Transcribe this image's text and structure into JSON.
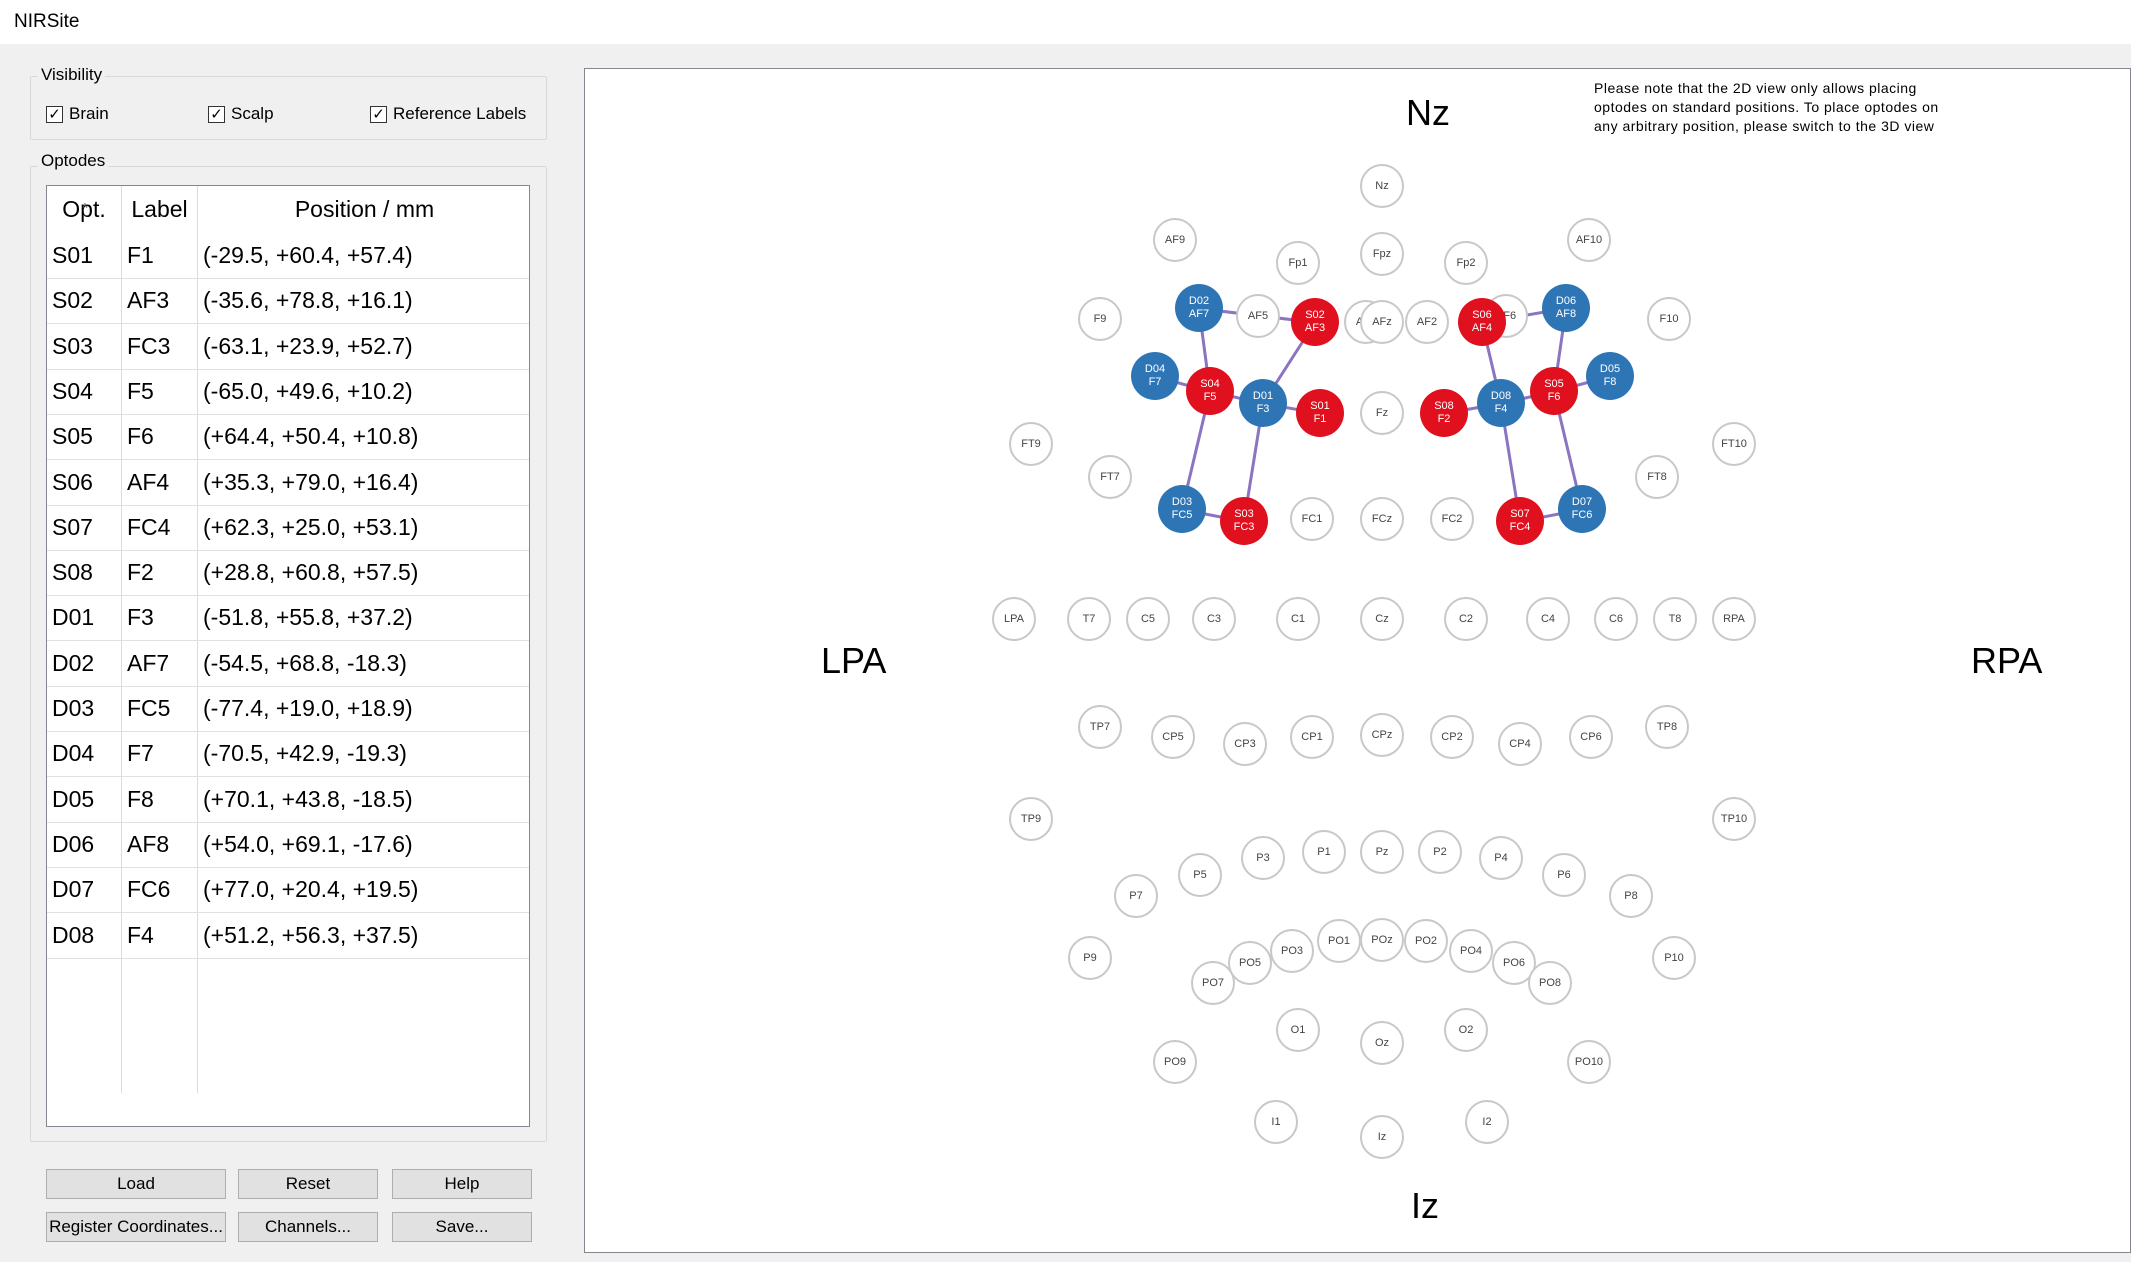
{
  "window": {
    "title": "NIRSite"
  },
  "visibility": {
    "title": "Visibility",
    "checkboxes": [
      {
        "label": "Brain",
        "checked": true
      },
      {
        "label": "Scalp",
        "checked": true
      },
      {
        "label": "Reference Labels",
        "checked": true
      }
    ]
  },
  "optodes": {
    "title": "Optodes",
    "columns": [
      "Opt.",
      "Label",
      "Position / mm"
    ],
    "rows": [
      {
        "opt": "S01",
        "label": "F1",
        "pos": "(-29.5, +60.4, +57.4)"
      },
      {
        "opt": "S02",
        "label": "AF3",
        "pos": "(-35.6, +78.8, +16.1)"
      },
      {
        "opt": "S03",
        "label": "FC3",
        "pos": "(-63.1, +23.9, +52.7)"
      },
      {
        "opt": "S04",
        "label": "F5",
        "pos": "(-65.0, +49.6, +10.2)"
      },
      {
        "opt": "S05",
        "label": "F6",
        "pos": "(+64.4, +50.4, +10.8)"
      },
      {
        "opt": "S06",
        "label": "AF4",
        "pos": "(+35.3, +79.0, +16.4)"
      },
      {
        "opt": "S07",
        "label": "FC4",
        "pos": "(+62.3, +25.0, +53.1)"
      },
      {
        "opt": "S08",
        "label": "F2",
        "pos": "(+28.8, +60.8, +57.5)"
      },
      {
        "opt": "D01",
        "label": "F3",
        "pos": "(-51.8, +55.8, +37.2)"
      },
      {
        "opt": "D02",
        "label": "AF7",
        "pos": "(-54.5, +68.8, -18.3)"
      },
      {
        "opt": "D03",
        "label": "FC5",
        "pos": "(-77.4, +19.0, +18.9)"
      },
      {
        "opt": "D04",
        "label": "F7",
        "pos": "(-70.5, +42.9, -19.3)"
      },
      {
        "opt": "D05",
        "label": "F8",
        "pos": "(+70.1, +43.8, -18.5)"
      },
      {
        "opt": "D06",
        "label": "AF8",
        "pos": "(+54.0, +69.1, -17.6)"
      },
      {
        "opt": "D07",
        "label": "FC6",
        "pos": "(+77.0, +20.4, +19.5)"
      },
      {
        "opt": "D08",
        "label": "F4",
        "pos": "(+51.2, +56.3, +37.5)"
      }
    ]
  },
  "buttons": {
    "load": "Load",
    "reset": "Reset",
    "help": "Help",
    "register": "Register Coordinates...",
    "channels": "Channels...",
    "save": "Save..."
  },
  "view2d": {
    "note": "Please note that the 2D view only allows placing optodes on standard positions. To place optodes on any arbitrary position, please switch to the 3D view",
    "landmarks": {
      "nz": "Nz",
      "iz": "Iz",
      "lpa": "LPA",
      "rpa": "RPA"
    },
    "source_color": "#e0101e",
    "detector_color": "#2e75b6",
    "electrodes": [
      "Nz",
      "Fp1",
      "Fpz",
      "Fp2",
      "AF9",
      "AF10",
      "AF7",
      "AF5",
      "AF1",
      "AFz",
      "AF2",
      "AF6",
      "AF8",
      "F9",
      "F10",
      "FT9",
      "FT10",
      "FT7",
      "FT8",
      "FC1",
      "FCz",
      "FC2",
      "Fz",
      "LPA",
      "T7",
      "C5",
      "C3",
      "C1",
      "Cz",
      "C2",
      "C4",
      "C6",
      "T8",
      "RPA",
      "TP7",
      "CP5",
      "CP3",
      "CP1",
      "CPz",
      "CP2",
      "CP4",
      "CP6",
      "TP8",
      "TP9",
      "TP10",
      "P7",
      "P5",
      "P3",
      "P1",
      "Pz",
      "P2",
      "P4",
      "P6",
      "P8",
      "P9",
      "P10",
      "PO7",
      "PO5",
      "PO3",
      "PO1",
      "POz",
      "PO2",
      "PO4",
      "PO6",
      "PO8",
      "O1",
      "Oz",
      "O2",
      "PO9",
      "PO10",
      "I1",
      "Iz",
      "I2"
    ],
    "optodes_placed": [
      {
        "id": "S01",
        "site": "F1",
        "type": "source"
      },
      {
        "id": "S02",
        "site": "AF3",
        "type": "source"
      },
      {
        "id": "S03",
        "site": "FC3",
        "type": "source"
      },
      {
        "id": "S04",
        "site": "F5",
        "type": "source"
      },
      {
        "id": "S05",
        "site": "F6",
        "type": "source"
      },
      {
        "id": "S06",
        "site": "AF4",
        "type": "source"
      },
      {
        "id": "S07",
        "site": "FC4",
        "type": "source"
      },
      {
        "id": "S08",
        "site": "F2",
        "type": "source"
      },
      {
        "id": "D01",
        "site": "F3",
        "type": "detector"
      },
      {
        "id": "D02",
        "site": "AF7",
        "type": "detector"
      },
      {
        "id": "D03",
        "site": "FC5",
        "type": "detector"
      },
      {
        "id": "D04",
        "site": "F7",
        "type": "detector"
      },
      {
        "id": "D05",
        "site": "F8",
        "type": "detector"
      },
      {
        "id": "D06",
        "site": "AF8",
        "type": "detector"
      },
      {
        "id": "D07",
        "site": "FC6",
        "type": "detector"
      },
      {
        "id": "D08",
        "site": "F4",
        "type": "detector"
      }
    ],
    "channels": [
      [
        "D02",
        "S02"
      ],
      [
        "D02",
        "S04"
      ],
      [
        "S02",
        "D01"
      ],
      [
        "D04",
        "S04"
      ],
      [
        "S04",
        "D01"
      ],
      [
        "D01",
        "S01"
      ],
      [
        "S04",
        "D03"
      ],
      [
        "D03",
        "S03"
      ],
      [
        "D01",
        "S03"
      ],
      [
        "S06",
        "D06"
      ],
      [
        "S06",
        "D08"
      ],
      [
        "S08",
        "D08"
      ],
      [
        "D08",
        "S05"
      ],
      [
        "D06",
        "S05"
      ],
      [
        "S05",
        "D05"
      ],
      [
        "D08",
        "S07"
      ],
      [
        "S07",
        "D07"
      ],
      [
        "S05",
        "D07"
      ]
    ]
  }
}
